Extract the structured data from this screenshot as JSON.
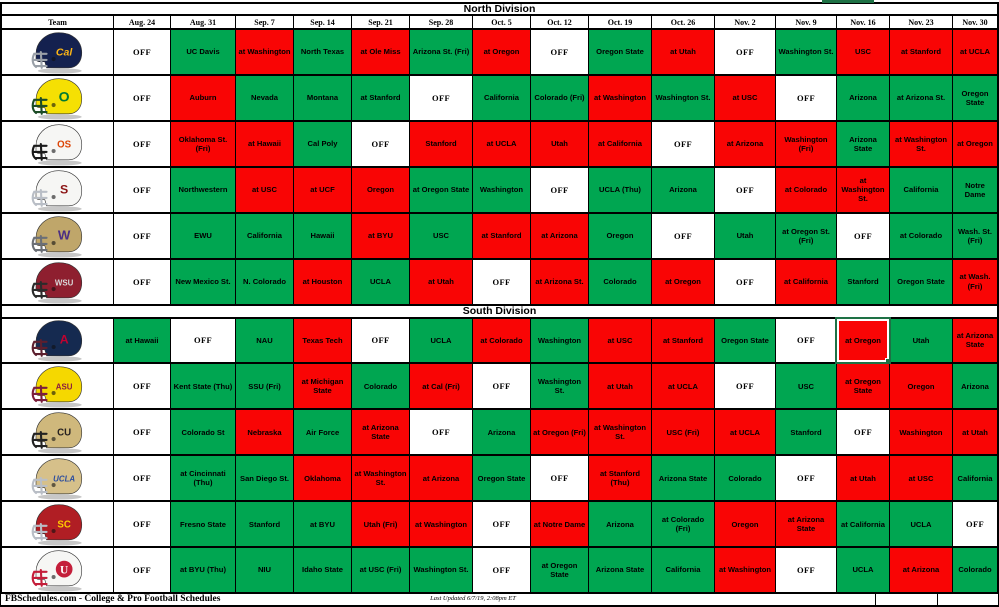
{
  "page": {
    "home_green": "#00A651",
    "away_red": "#F90505",
    "selection_green": "#1E7145",
    "off_label": "OFF",
    "footer": {
      "brand": "FBSchedules.com - College & Pro Football Schedules",
      "updated": "Last Updated 6/7/19, 2:08pm ET"
    }
  },
  "columns": [
    "Team",
    "Aug. 24",
    "Aug. 31",
    "Sep. 7",
    "Sep. 14",
    "Sep. 21",
    "Sep. 28",
    "Oct. 5",
    "Oct. 12",
    "Oct. 19",
    "Oct. 26",
    "Nov. 2",
    "Nov. 9",
    "Nov. 16",
    "Nov. 23",
    "Nov. 30"
  ],
  "divisions": [
    {
      "label": "North Division",
      "teams": [
        {
          "name": "California",
          "slug": "california",
          "helmet": {
            "shell": "#14214F",
            "mask": "#9aa0a8",
            "logo": "Cal",
            "logoColor": "#FDB515",
            "logoSize": 12,
            "script": true
          },
          "games": [
            [
              "OFF",
              "w"
            ],
            [
              "UC Davis",
              "g"
            ],
            [
              "at Washington",
              "r"
            ],
            [
              "North Texas",
              "g"
            ],
            [
              "at Ole Miss",
              "r"
            ],
            [
              "Arizona St. (Fri)",
              "g"
            ],
            [
              "at Oregon",
              "r"
            ],
            [
              "OFF",
              "w"
            ],
            [
              "Oregon State",
              "g"
            ],
            [
              "at Utah",
              "r"
            ],
            [
              "OFF",
              "w"
            ],
            [
              "Washington St.",
              "g"
            ],
            [
              "USC",
              "r"
            ],
            [
              "at Stanford",
              "r"
            ],
            [
              "at UCLA",
              "r"
            ]
          ]
        },
        {
          "name": "Oregon",
          "slug": "oregon",
          "helmet": {
            "shell": "#F5E003",
            "mask": "#1c4c26",
            "logo": "O",
            "logoColor": "#007A33",
            "logoSize": 16
          },
          "games": [
            [
              "OFF",
              "w"
            ],
            [
              "Auburn",
              "r"
            ],
            [
              "Nevada",
              "g"
            ],
            [
              "Montana",
              "g"
            ],
            [
              "at Stanford",
              "g"
            ],
            [
              "OFF",
              "w"
            ],
            [
              "California",
              "g"
            ],
            [
              "Colorado (Fri)",
              "g"
            ],
            [
              "at Washington",
              "r"
            ],
            [
              "Washington St.",
              "g"
            ],
            [
              "at USC",
              "r"
            ],
            [
              "OFF",
              "w"
            ],
            [
              "Arizona",
              "g"
            ],
            [
              "at Arizona St.",
              "g"
            ],
            [
              "Oregon State",
              "g"
            ]
          ]
        },
        {
          "name": "Oregon State",
          "slug": "oregon-state",
          "helmet": {
            "shell": "#F6F6F4",
            "mask": "#1a1a1a",
            "logo": "OS",
            "logoColor": "#DC4405",
            "logoSize": 11
          },
          "games": [
            [
              "OFF",
              "w"
            ],
            [
              "Oklahoma St. (Fri)",
              "r"
            ],
            [
              "at Hawaii",
              "r"
            ],
            [
              "Cal Poly",
              "g"
            ],
            [
              "OFF",
              "w"
            ],
            [
              "Stanford",
              "r"
            ],
            [
              "at UCLA",
              "r"
            ],
            [
              "Utah",
              "r"
            ],
            [
              "at California",
              "r"
            ],
            [
              "OFF",
              "w"
            ],
            [
              "at Arizona",
              "r"
            ],
            [
              "Washington (Fri)",
              "r"
            ],
            [
              "Arizona State",
              "g"
            ],
            [
              "at Washington St.",
              "r"
            ],
            [
              "at Oregon",
              "r"
            ]
          ]
        },
        {
          "name": "Stanford",
          "slug": "stanford",
          "helmet": {
            "shell": "#F6F6F4",
            "mask": "#b9bec6",
            "logo": "S",
            "logoColor": "#8C1515",
            "logoSize": 14
          },
          "games": [
            [
              "OFF",
              "w"
            ],
            [
              "Northwestern",
              "g"
            ],
            [
              "at USC",
              "r"
            ],
            [
              "at UCF",
              "r"
            ],
            [
              "Oregon",
              "r"
            ],
            [
              "at Oregon State",
              "g"
            ],
            [
              "Washington",
              "g"
            ],
            [
              "OFF",
              "w"
            ],
            [
              "UCLA (Thu)",
              "g"
            ],
            [
              "Arizona",
              "g"
            ],
            [
              "OFF",
              "w"
            ],
            [
              "at Colorado",
              "r"
            ],
            [
              "at Washington St.",
              "r"
            ],
            [
              "California",
              "g"
            ],
            [
              "Notre Dame",
              "g"
            ]
          ]
        },
        {
          "name": "Washington",
          "slug": "washington",
          "helmet": {
            "shell": "#BFA66A",
            "mask": "#6b6f76",
            "logo": "W",
            "logoColor": "#4B2E83",
            "logoSize": 15
          },
          "games": [
            [
              "OFF",
              "w"
            ],
            [
              "EWU",
              "g"
            ],
            [
              "California",
              "g"
            ],
            [
              "Hawaii",
              "g"
            ],
            [
              "at BYU",
              "r"
            ],
            [
              "USC",
              "g"
            ],
            [
              "at Stanford",
              "r"
            ],
            [
              "at Arizona",
              "r"
            ],
            [
              "Oregon",
              "g"
            ],
            [
              "OFF",
              "w"
            ],
            [
              "Utah",
              "g"
            ],
            [
              "at Oregon St. (Fri)",
              "g"
            ],
            [
              "OFF",
              "w"
            ],
            [
              "at Colorado",
              "g"
            ],
            [
              "Wash. St. (Fri)",
              "g"
            ]
          ]
        },
        {
          "name": "Washington State",
          "slug": "washington-state",
          "helmet": {
            "shell": "#8E1F2F",
            "mask": "#2b2b2b",
            "logo": "WSU",
            "logoColor": "#d9d9d9",
            "logoSize": 9
          },
          "games": [
            [
              "OFF",
              "w"
            ],
            [
              "New Mexico St.",
              "g"
            ],
            [
              "N. Colorado",
              "g"
            ],
            [
              "at Houston",
              "r"
            ],
            [
              "UCLA",
              "g"
            ],
            [
              "at Utah",
              "r"
            ],
            [
              "OFF",
              "w"
            ],
            [
              "at Arizona St.",
              "r"
            ],
            [
              "Colorado",
              "g"
            ],
            [
              "at Oregon",
              "r"
            ],
            [
              "OFF",
              "w"
            ],
            [
              "at California",
              "r"
            ],
            [
              "Stanford",
              "g"
            ],
            [
              "Oregon State",
              "g"
            ],
            [
              "at Wash. (Fri)",
              "r"
            ]
          ]
        }
      ]
    },
    {
      "label": "South Division",
      "teams": [
        {
          "name": "Arizona",
          "slug": "arizona",
          "helmet": {
            "shell": "#152A50",
            "mask": "#5c1f2e",
            "logo": "A",
            "logoColor": "#C10230",
            "logoSize": 14
          },
          "games": [
            [
              "at Hawaii",
              "g"
            ],
            [
              "OFF",
              "w"
            ],
            [
              "NAU",
              "g"
            ],
            [
              "Texas Tech",
              "r"
            ],
            [
              "OFF",
              "w"
            ],
            [
              "UCLA",
              "g"
            ],
            [
              "at Colorado",
              "r"
            ],
            [
              "Washington",
              "g"
            ],
            [
              "at USC",
              "r"
            ],
            [
              "at Stanford",
              "r"
            ],
            [
              "Oregon State",
              "g"
            ],
            [
              "OFF",
              "w"
            ],
            [
              "at Oregon",
              "r",
              "sel"
            ],
            [
              "Utah",
              "g"
            ],
            [
              "at Arizona State",
              "r"
            ]
          ]
        },
        {
          "name": "Arizona State",
          "slug": "arizona-state",
          "helmet": {
            "shell": "#F5D800",
            "mask": "#7b1e3b",
            "logo": "ASU",
            "logoColor": "#8C1D40",
            "logoSize": 9
          },
          "games": [
            [
              "OFF",
              "w"
            ],
            [
              "Kent State (Thu)",
              "g"
            ],
            [
              "SSU (Fri)",
              "g"
            ],
            [
              "at Michigan State",
              "r"
            ],
            [
              "Colorado",
              "g"
            ],
            [
              "at Cal (Fri)",
              "r"
            ],
            [
              "OFF",
              "w"
            ],
            [
              "Washington St.",
              "g"
            ],
            [
              "at Utah",
              "r"
            ],
            [
              "at UCLA",
              "r"
            ],
            [
              "OFF",
              "w"
            ],
            [
              "USC",
              "g"
            ],
            [
              "at Oregon State",
              "r"
            ],
            [
              "Oregon",
              "r"
            ],
            [
              "Arizona",
              "g"
            ]
          ]
        },
        {
          "name": "Colorado",
          "slug": "colorado",
          "helmet": {
            "shell": "#CFB87C",
            "mask": "#222222",
            "logo": "CU",
            "logoColor": "#241f1f",
            "logoSize": 11
          },
          "games": [
            [
              "OFF",
              "w"
            ],
            [
              "Colorado St",
              "g"
            ],
            [
              "Nebraska",
              "r"
            ],
            [
              "Air Force",
              "g"
            ],
            [
              "at Arizona State",
              "r"
            ],
            [
              "OFF",
              "w"
            ],
            [
              "Arizona",
              "g"
            ],
            [
              "at Oregon (Fri)",
              "r"
            ],
            [
              "at Washington St.",
              "r"
            ],
            [
              "USC (Fri)",
              "r"
            ],
            [
              "at UCLA",
              "r"
            ],
            [
              "Stanford",
              "g"
            ],
            [
              "OFF",
              "w"
            ],
            [
              "Washington",
              "r"
            ],
            [
              "at Utah",
              "r"
            ]
          ]
        },
        {
          "name": "UCLA",
          "slug": "ucla",
          "helmet": {
            "shell": "#D6C08A",
            "mask": "#b9bec6",
            "logo": "UCLA",
            "logoColor": "#2D4E9E",
            "logoSize": 9,
            "script": true
          },
          "games": [
            [
              "OFF",
              "w"
            ],
            [
              "at Cincinnati (Thu)",
              "g"
            ],
            [
              "San Diego St.",
              "g"
            ],
            [
              "Oklahoma",
              "r"
            ],
            [
              "at Washington St.",
              "r"
            ],
            [
              "at Arizona",
              "r"
            ],
            [
              "Oregon State",
              "g"
            ],
            [
              "OFF",
              "w"
            ],
            [
              "at Stanford (Thu)",
              "r"
            ],
            [
              "Arizona State",
              "g"
            ],
            [
              "Colorado",
              "g"
            ],
            [
              "OFF",
              "w"
            ],
            [
              "at Utah",
              "r"
            ],
            [
              "at USC",
              "r"
            ],
            [
              "California",
              "g"
            ]
          ]
        },
        {
          "name": "USC",
          "slug": "usc",
          "helmet": {
            "shell": "#B01E24",
            "mask": "#b9bec6",
            "logo": "SC",
            "logoColor": "#FFCC00",
            "logoSize": 11
          },
          "games": [
            [
              "OFF",
              "w"
            ],
            [
              "Fresno State",
              "g"
            ],
            [
              "Stanford",
              "g"
            ],
            [
              "at BYU",
              "g"
            ],
            [
              "Utah (Fri)",
              "r"
            ],
            [
              "at Washington",
              "r"
            ],
            [
              "OFF",
              "w"
            ],
            [
              "at Notre Dame",
              "r"
            ],
            [
              "Arizona",
              "g"
            ],
            [
              "at Colorado (Fri)",
              "g"
            ],
            [
              "Oregon",
              "r"
            ],
            [
              "at Arizona State",
              "r"
            ],
            [
              "at California",
              "g"
            ],
            [
              "UCLA",
              "g"
            ],
            [
              "OFF",
              "w"
            ]
          ]
        },
        {
          "name": "Utah",
          "slug": "utah",
          "helmet": {
            "shell": "#F6F6F4",
            "mask": "#C41E3A",
            "logo": "U",
            "logoColor": "#C41E3A",
            "circle": true
          },
          "games": [
            [
              "OFF",
              "w"
            ],
            [
              "at BYU (Thu)",
              "g"
            ],
            [
              "NIU",
              "g"
            ],
            [
              "Idaho State",
              "g"
            ],
            [
              "at USC (Fri)",
              "g"
            ],
            [
              "Washington St.",
              "g"
            ],
            [
              "OFF",
              "w"
            ],
            [
              "at Oregon State",
              "g"
            ],
            [
              "Arizona State",
              "g"
            ],
            [
              "California",
              "g"
            ],
            [
              "at Washington",
              "r"
            ],
            [
              "OFF",
              "w"
            ],
            [
              "UCLA",
              "g"
            ],
            [
              "at Arizona",
              "r"
            ],
            [
              "Colorado",
              "g"
            ]
          ]
        }
      ]
    }
  ]
}
